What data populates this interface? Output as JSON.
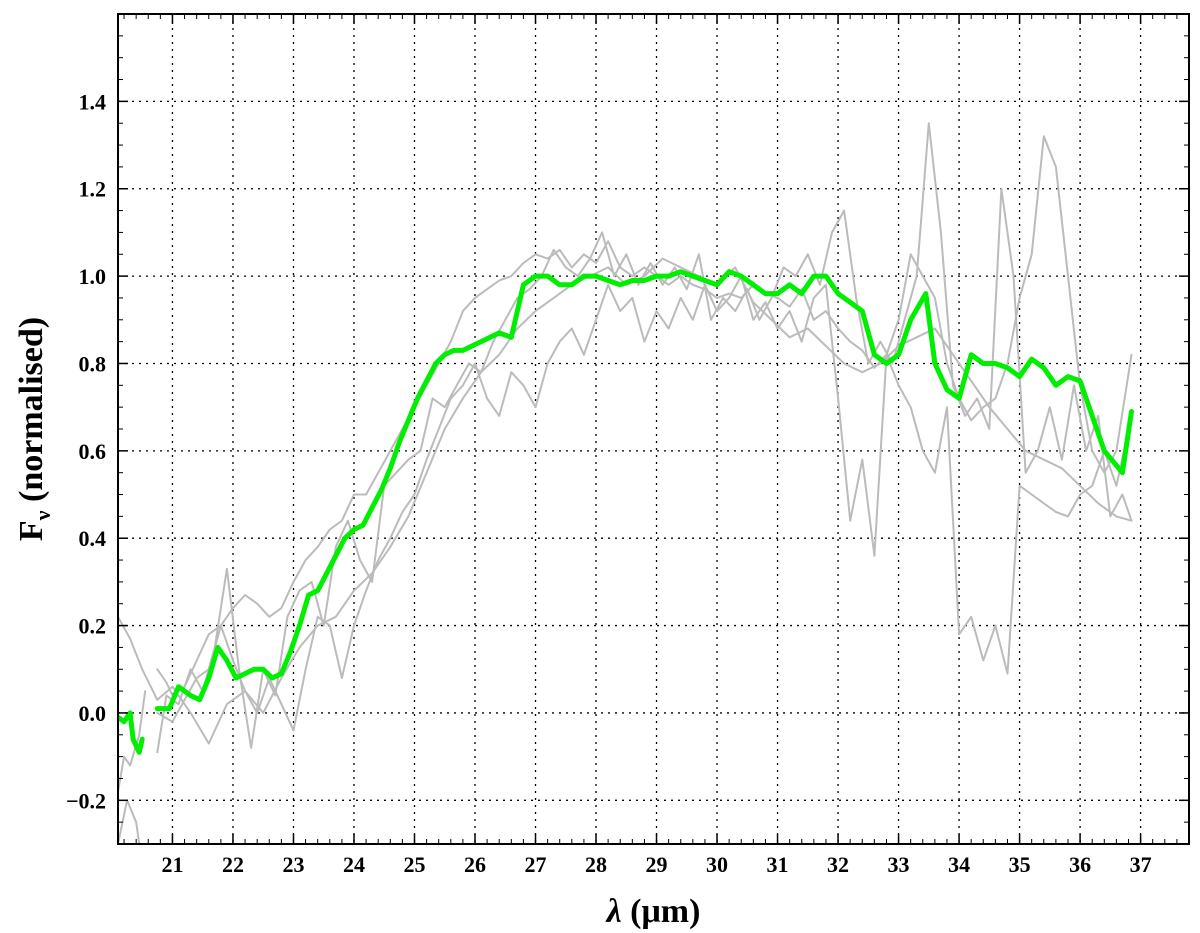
{
  "chart_data": {
    "type": "line",
    "xlabel": {
      "symbol": "λ",
      "unit": " (μm)"
    },
    "ylabel": {
      "symbol": "F",
      "subscript": "ν",
      "rest": " (normalised)"
    },
    "xlim": [
      20.1,
      37.8
    ],
    "ylim": [
      -0.3,
      1.6
    ],
    "xticks_major": [
      21,
      22,
      23,
      24,
      25,
      26,
      27,
      28,
      29,
      30,
      31,
      32,
      33,
      34,
      35,
      36,
      37
    ],
    "yticks_major": [
      -0.2,
      0.0,
      0.2,
      0.4,
      0.6,
      0.8,
      1.0,
      1.2,
      1.4
    ],
    "ytick_labels": [
      "−0.2",
      "0.0",
      "0.2",
      "0.4",
      "0.6",
      "0.8",
      "1.0",
      "1.2",
      "1.4"
    ],
    "grid": true,
    "grid_style": "dotted",
    "colors": {
      "mean": "#00ee00",
      "individual": "#bbbbbb",
      "frame": "#000000",
      "grid": "#000000"
    },
    "series": [
      {
        "role": "individual",
        "segments": [
          {
            "x": [
              20.1,
              20.2,
              20.3,
              20.45,
              20.55
            ],
            "y": [
              -0.18,
              -0.1,
              -0.12,
              -0.05,
              0.05
            ]
          },
          {
            "x": [
              20.75,
              20.9,
              21.0,
              21.2,
              21.4,
              21.6,
              21.8,
              22.0,
              22.2,
              22.4,
              22.6,
              22.8,
              23.0,
              23.2,
              23.4,
              23.6,
              23.8,
              24.0,
              24.2,
              24.4,
              24.6,
              24.8,
              25.0,
              25.2,
              25.4,
              25.6,
              25.8,
              26.0,
              26.2,
              26.4,
              26.6,
              26.8,
              27.0,
              27.2,
              27.4,
              27.6,
              27.8,
              28.0,
              28.2,
              28.4,
              28.6,
              28.8,
              29.0,
              29.2,
              29.4,
              29.6,
              29.8,
              30.0,
              30.2,
              30.4,
              30.6,
              30.8,
              31.0,
              31.2,
              31.4,
              31.6,
              31.8,
              32.0,
              32.2,
              32.4,
              32.6,
              32.8,
              33.0,
              33.2,
              33.4,
              33.6,
              33.8,
              34.0,
              34.2,
              34.4,
              34.6,
              34.8,
              35.0,
              35.2,
              35.4,
              35.6,
              35.8,
              36.0,
              36.2,
              36.4,
              36.6,
              36.85
            ],
            "y": [
              0.1,
              0.07,
              0.04,
              0.06,
              0.12,
              0.18,
              0.2,
              0.24,
              0.27,
              0.25,
              0.22,
              0.24,
              0.3,
              0.35,
              0.38,
              0.42,
              0.44,
              0.5,
              0.5,
              0.55,
              0.6,
              0.65,
              0.7,
              0.75,
              0.8,
              0.85,
              0.92,
              0.95,
              0.97,
              0.99,
              1.0,
              1.03,
              1.05,
              1.04,
              1.06,
              1.02,
              1.05,
              1.03,
              1.08,
              1.02,
              1.0,
              1.02,
              1.0,
              0.98,
              1.0,
              0.98,
              0.97,
              0.95,
              0.96,
              0.95,
              0.98,
              0.96,
              0.95,
              0.93,
              0.97,
              0.9,
              0.92,
              0.88,
              0.85,
              0.83,
              0.79,
              0.82,
              0.9,
              1.05,
              1.0,
              0.95,
              0.8,
              0.72,
              0.67,
              0.7,
              0.72,
              0.8,
              0.95,
              1.05,
              1.32,
              1.25,
              1.0,
              0.75,
              0.6,
              0.55,
              0.6,
              0.82
            ]
          },
          {
            "x": [
              20.75,
              20.9,
              21.1,
              21.3,
              21.5,
              21.7,
              21.9,
              22.1,
              22.3,
              22.5,
              22.7,
              22.9,
              23.1,
              23.3,
              23.5,
              23.7,
              23.9,
              24.1,
              24.3,
              24.5,
              24.7,
              24.9,
              25.1,
              25.3,
              25.5,
              25.7,
              25.9,
              26.1,
              26.3,
              26.5,
              26.7,
              26.9,
              27.1,
              27.3,
              27.5,
              27.7,
              27.9,
              28.1,
              28.3,
              28.5,
              28.7,
              28.9,
              29.1,
              29.3,
              29.5,
              29.7,
              29.9,
              30.1,
              30.3,
              30.5,
              30.7,
              30.9,
              31.1,
              31.3,
              31.5,
              31.7,
              31.9,
              32.1,
              32.3,
              32.5,
              32.7,
              32.9,
              33.1,
              33.3,
              33.5,
              33.7,
              33.9,
              34.1,
              34.3,
              34.5,
              34.7,
              34.9,
              35.1,
              35.3,
              35.5,
              35.7,
              35.9,
              36.1,
              36.3,
              36.5,
              36.7,
              36.85
            ],
            "y": [
              -0.09,
              0.04,
              0.02,
              0.1,
              0.05,
              0.15,
              0.33,
              0.1,
              -0.08,
              0.1,
              0.04,
              0.22,
              0.28,
              0.3,
              0.2,
              0.38,
              0.44,
              0.35,
              0.3,
              0.52,
              0.55,
              0.58,
              0.6,
              0.72,
              0.7,
              0.75,
              0.8,
              0.78,
              0.85,
              0.9,
              0.95,
              0.97,
              1.0,
              1.06,
              1.02,
              1.0,
              1.04,
              1.1,
              1.0,
              1.05,
              0.98,
              1.03,
              0.98,
              1.02,
              0.97,
              1.05,
              0.9,
              0.95,
              0.92,
              0.97,
              0.9,
              0.95,
              1.02,
              1.0,
              1.05,
              0.98,
              1.1,
              1.15,
              0.95,
              0.8,
              0.85,
              0.8,
              0.9,
              1.0,
              1.35,
              1.1,
              0.75,
              0.68,
              0.72,
              0.65,
              1.2,
              1.0,
              0.55,
              0.6,
              0.7,
              0.58,
              0.75,
              0.6,
              0.68,
              0.45,
              0.5,
              0.44
            ]
          },
          {
            "x": [
              20.75,
              21.0,
              21.2,
              21.4,
              21.6,
              21.8,
              22.0,
              22.2,
              22.4,
              22.6,
              22.8,
              23.0,
              23.2,
              23.4,
              23.6,
              23.8,
              24.0,
              24.2,
              24.4,
              24.6,
              24.8,
              25.0,
              25.2,
              25.4,
              25.6,
              25.8,
              26.0,
              26.2,
              26.4,
              26.6,
              26.8,
              27.0,
              27.2,
              27.4,
              27.6,
              27.8,
              28.0,
              28.2,
              28.4,
              28.6,
              28.8,
              29.0,
              29.2,
              29.4,
              29.6,
              29.8,
              30.0,
              30.2,
              30.4,
              30.6,
              30.8,
              31.0,
              31.2,
              31.4,
              31.6,
              31.8,
              32.0,
              32.2,
              32.4,
              32.6,
              32.8,
              33.0,
              33.2,
              33.4,
              33.6,
              33.8,
              34.0,
              34.2,
              34.4,
              34.6,
              34.8,
              35.0,
              35.2,
              35.4,
              35.6,
              35.8,
              36.0,
              36.2,
              36.4,
              36.6,
              36.85
            ],
            "y": [
              0.0,
              -0.02,
              0.03,
              0.08,
              0.1,
              0.2,
              0.12,
              0.05,
              0.0,
              0.08,
              0.02,
              -0.04,
              0.1,
              0.22,
              0.2,
              0.08,
              0.2,
              0.28,
              0.35,
              0.4,
              0.46,
              0.5,
              0.58,
              0.65,
              0.72,
              0.75,
              0.8,
              0.72,
              0.68,
              0.78,
              0.75,
              0.7,
              0.8,
              0.85,
              0.88,
              0.82,
              0.9,
              0.98,
              0.92,
              0.95,
              0.85,
              0.92,
              0.88,
              0.95,
              0.9,
              0.98,
              0.92,
              0.95,
              1.0,
              0.9,
              0.94,
              0.88,
              0.92,
              0.85,
              0.95,
              0.98,
              0.72,
              0.44,
              0.58,
              0.36,
              0.82,
              0.75,
              0.7,
              0.6,
              0.55,
              0.7,
              0.18,
              0.22,
              0.12,
              0.2,
              0.09,
              0.52,
              0.5,
              0.48,
              0.46,
              0.45,
              0.5,
              0.52,
              0.6,
              0.52,
              0.68
            ]
          },
          {
            "x": [
              20.1,
              20.3,
              20.5,
              20.75,
              21.0,
              21.3,
              21.6,
              21.9,
              22.2,
              22.5,
              22.8,
              23.1,
              23.4,
              23.7,
              24.0,
              24.3,
              24.6,
              24.9,
              25.2,
              25.5,
              25.8,
              26.1,
              26.4,
              26.7,
              27.0,
              27.3,
              27.6,
              27.9,
              28.2,
              28.5,
              28.8,
              29.1,
              29.4,
              29.7,
              30.0,
              30.3,
              30.6,
              30.9,
              31.2,
              31.5,
              31.8,
              32.1,
              32.4,
              32.7,
              33.0,
              33.3,
              33.6,
              33.9,
              34.2,
              34.5,
              34.8,
              35.1,
              35.4,
              35.7,
              36.0,
              36.3,
              36.6,
              36.85
            ],
            "y": [
              0.22,
              0.17,
              0.1,
              0.03,
              0.06,
              0.0,
              -0.07,
              0.02,
              0.05,
              0.0,
              0.08,
              0.15,
              0.2,
              0.22,
              0.28,
              0.32,
              0.38,
              0.45,
              0.55,
              0.65,
              0.72,
              0.78,
              0.82,
              0.88,
              0.92,
              0.95,
              0.98,
              1.0,
              1.02,
              0.98,
              1.0,
              1.04,
              1.02,
              1.0,
              0.98,
              1.02,
              0.94,
              0.9,
              0.86,
              0.88,
              0.84,
              0.8,
              0.78,
              0.8,
              0.84,
              0.86,
              0.88,
              0.82,
              0.76,
              0.7,
              0.65,
              0.6,
              0.58,
              0.56,
              0.52,
              0.48,
              0.45,
              0.44
            ]
          },
          {
            "x": [
              20.1,
              20.25,
              20.4,
              20.5
            ],
            "y": [
              -0.3,
              -0.2,
              -0.25,
              -0.35
            ]
          }
        ]
      },
      {
        "role": "mean",
        "segments": [
          {
            "x": [
              20.1,
              20.2,
              20.3,
              20.35,
              20.45,
              20.5
            ],
            "y": [
              -0.01,
              -0.02,
              0.0,
              -0.06,
              -0.09,
              -0.06
            ]
          },
          {
            "x": [
              20.75,
              20.95,
              21.1,
              21.3,
              21.45,
              21.6,
              21.75,
              21.9,
              22.05,
              22.2,
              22.35,
              22.5,
              22.65,
              22.8,
              22.95,
              23.1,
              23.25,
              23.4,
              23.55,
              23.7,
              23.85,
              24.0,
              24.15,
              24.3,
              24.45,
              24.6,
              24.75,
              24.9,
              25.05,
              25.2,
              25.35,
              25.5,
              25.65,
              25.8,
              25.95,
              26.1,
              26.25,
              26.4,
              26.6,
              26.8,
              27.0,
              27.2,
              27.4,
              27.6,
              27.8,
              28.0,
              28.2,
              28.4,
              28.6,
              28.8,
              29.0,
              29.2,
              29.4,
              29.6,
              29.8,
              30.0,
              30.2,
              30.4,
              30.6,
              30.8,
              31.0,
              31.2,
              31.4,
              31.6,
              31.8,
              32.0,
              32.2,
              32.4,
              32.6,
              32.8,
              33.0,
              33.2,
              33.45,
              33.6,
              33.8,
              34.0,
              34.2,
              34.4,
              34.6,
              34.8,
              35.0,
              35.2,
              35.4,
              35.6,
              35.8,
              36.0,
              36.2,
              36.4,
              36.7,
              36.85
            ],
            "y": [
              0.01,
              0.01,
              0.06,
              0.04,
              0.03,
              0.08,
              0.15,
              0.12,
              0.08,
              0.09,
              0.1,
              0.1,
              0.08,
              0.09,
              0.14,
              0.2,
              0.27,
              0.28,
              0.32,
              0.36,
              0.4,
              0.42,
              0.43,
              0.47,
              0.51,
              0.56,
              0.62,
              0.67,
              0.72,
              0.76,
              0.8,
              0.82,
              0.83,
              0.83,
              0.84,
              0.85,
              0.86,
              0.87,
              0.86,
              0.98,
              1.0,
              1.0,
              0.98,
              0.98,
              1.0,
              1.0,
              0.99,
              0.98,
              0.99,
              0.99,
              1.0,
              1.0,
              1.01,
              1.0,
              0.99,
              0.98,
              1.01,
              1.0,
              0.98,
              0.96,
              0.96,
              0.98,
              0.96,
              1.0,
              1.0,
              0.96,
              0.94,
              0.92,
              0.82,
              0.8,
              0.82,
              0.9,
              0.96,
              0.8,
              0.74,
              0.72,
              0.82,
              0.8,
              0.8,
              0.79,
              0.77,
              0.81,
              0.79,
              0.75,
              0.77,
              0.76,
              0.68,
              0.6,
              0.55,
              0.69
            ]
          }
        ]
      }
    ]
  }
}
